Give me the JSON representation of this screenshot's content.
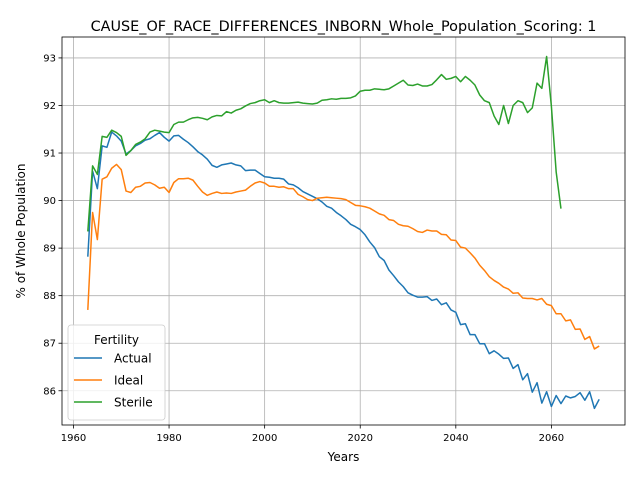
{
  "chart_data": {
    "type": "line",
    "title": "CAUSE_OF_RACE_DIFFERENCES_INBORN_Whole_Population_Scoring: 1",
    "xlabel": "Years",
    "ylabel": "% of Whole Population",
    "xlim": [
      1957.6,
      2075.4
    ],
    "ylim": [
      85.28,
      93.44
    ],
    "xticks": [
      1960,
      1980,
      2000,
      2020,
      2040,
      2060
    ],
    "yticks": [
      86,
      87,
      88,
      89,
      90,
      91,
      92,
      93
    ],
    "grid": true,
    "legend": {
      "title": "Fertility",
      "placement": "lower-left"
    },
    "series": [
      {
        "name": "Actual",
        "color": "#1f77b4",
        "x": [
          1963,
          1964,
          1965,
          1966,
          1967,
          1968,
          1969,
          1970,
          1971,
          1972,
          1973,
          1974,
          1975,
          1976,
          1977,
          1978,
          1979,
          1980,
          1981,
          1982,
          1983,
          1984,
          1985,
          1986,
          1987,
          1988,
          1989,
          1990,
          1991,
          1992,
          1993,
          1994,
          1995,
          1996,
          1997,
          1998,
          1999,
          2000,
          2001,
          2002,
          2003,
          2004,
          2005,
          2006,
          2007,
          2008,
          2009,
          2010,
          2011,
          2012,
          2013,
          2014,
          2015,
          2016,
          2017,
          2018,
          2019,
          2020,
          2021,
          2022,
          2023,
          2024,
          2025,
          2026,
          2027,
          2028,
          2029,
          2030,
          2031,
          2032,
          2033,
          2034,
          2035,
          2036,
          2037,
          2038,
          2039,
          2040,
          2041,
          2042,
          2043,
          2044,
          2045,
          2046,
          2047,
          2048,
          2049,
          2050,
          2051,
          2052,
          2053,
          2054,
          2055,
          2056,
          2057,
          2058,
          2059,
          2060,
          2061,
          2062,
          2063,
          2064,
          2065,
          2066,
          2067,
          2068,
          2069,
          2070
        ],
        "values": [
          88.82,
          90.62,
          90.25,
          91.15,
          91.12,
          91.44,
          91.36,
          91.25,
          90.98,
          91.05,
          91.15,
          91.2,
          91.27,
          91.3,
          91.37,
          91.43,
          91.33,
          91.25,
          91.36,
          91.37,
          91.29,
          91.22,
          91.13,
          91.03,
          90.96,
          90.87,
          90.74,
          90.7,
          90.75,
          90.77,
          90.79,
          90.75,
          90.73,
          90.63,
          90.64,
          90.64,
          90.57,
          90.5,
          90.49,
          90.47,
          90.47,
          90.45,
          90.35,
          90.33,
          90.27,
          90.19,
          90.14,
          90.09,
          90.04,
          89.97,
          89.88,
          89.84,
          89.75,
          89.68,
          89.6,
          89.5,
          89.45,
          89.39,
          89.28,
          89.13,
          89.01,
          88.82,
          88.74,
          88.54,
          88.42,
          88.29,
          88.19,
          88.06,
          88.01,
          87.97,
          87.97,
          87.98,
          87.9,
          87.93,
          87.81,
          87.85,
          87.7,
          87.65,
          87.39,
          87.41,
          87.18,
          87.18,
          86.99,
          86.99,
          86.78,
          86.84,
          86.77,
          86.68,
          86.69,
          86.47,
          86.55,
          86.23,
          86.36,
          85.97,
          86.17,
          85.74,
          85.98,
          85.67,
          85.9,
          85.73,
          85.89,
          85.85,
          85.88,
          85.96,
          85.8,
          85.98,
          85.63,
          85.82
        ]
      },
      {
        "name": "Ideal",
        "color": "#ff7f0e",
        "x": [
          1963,
          1964,
          1965,
          1966,
          1967,
          1968,
          1969,
          1970,
          1971,
          1972,
          1973,
          1974,
          1975,
          1976,
          1977,
          1978,
          1979,
          1980,
          1981,
          1982,
          1983,
          1984,
          1985,
          1986,
          1987,
          1988,
          1989,
          1990,
          1991,
          1992,
          1993,
          1994,
          1995,
          1996,
          1997,
          1998,
          1999,
          2000,
          2001,
          2002,
          2003,
          2004,
          2005,
          2006,
          2007,
          2008,
          2009,
          2010,
          2011,
          2012,
          2013,
          2014,
          2015,
          2016,
          2017,
          2018,
          2019,
          2020,
          2021,
          2022,
          2023,
          2024,
          2025,
          2026,
          2027,
          2028,
          2029,
          2030,
          2031,
          2032,
          2033,
          2034,
          2035,
          2036,
          2037,
          2038,
          2039,
          2040,
          2041,
          2042,
          2043,
          2044,
          2045,
          2046,
          2047,
          2048,
          2049,
          2050,
          2051,
          2052,
          2053,
          2054,
          2055,
          2056,
          2057,
          2058,
          2059,
          2060,
          2061,
          2062,
          2063,
          2064,
          2065,
          2066,
          2067,
          2068,
          2069,
          2070
        ],
        "values": [
          87.7,
          89.75,
          89.18,
          90.45,
          90.5,
          90.68,
          90.76,
          90.65,
          90.2,
          90.17,
          90.28,
          90.3,
          90.37,
          90.38,
          90.33,
          90.26,
          90.28,
          90.17,
          90.38,
          90.46,
          90.46,
          90.47,
          90.43,
          90.3,
          90.18,
          90.11,
          90.15,
          90.18,
          90.15,
          90.16,
          90.15,
          90.18,
          90.2,
          90.22,
          90.3,
          90.37,
          90.4,
          90.37,
          90.3,
          90.3,
          90.28,
          90.29,
          90.25,
          90.25,
          90.13,
          90.08,
          90.02,
          90.0,
          90.05,
          90.06,
          90.07,
          90.06,
          90.05,
          90.04,
          90.02,
          89.96,
          89.9,
          89.89,
          89.87,
          89.84,
          89.78,
          89.72,
          89.69,
          89.6,
          89.58,
          89.5,
          89.47,
          89.46,
          89.41,
          89.35,
          89.33,
          89.38,
          89.36,
          89.36,
          89.29,
          89.28,
          89.17,
          89.16,
          89.02,
          89.0,
          88.9,
          88.79,
          88.64,
          88.53,
          88.4,
          88.32,
          88.26,
          88.18,
          88.14,
          88.05,
          88.06,
          87.95,
          87.94,
          87.94,
          87.91,
          87.94,
          87.82,
          87.79,
          87.62,
          87.62,
          87.47,
          87.49,
          87.29,
          87.3,
          87.08,
          87.14,
          86.88,
          86.94
        ]
      },
      {
        "name": "Sterile",
        "color": "#2ca02c",
        "x": [
          1963,
          1964,
          1965,
          1966,
          1967,
          1968,
          1969,
          1970,
          1971,
          1972,
          1973,
          1974,
          1975,
          1976,
          1977,
          1978,
          1979,
          1980,
          1981,
          1982,
          1983,
          1984,
          1985,
          1986,
          1987,
          1988,
          1989,
          1990,
          1991,
          1992,
          1993,
          1994,
          1995,
          1996,
          1997,
          1998,
          1999,
          2000,
          2001,
          2002,
          2003,
          2004,
          2005,
          2006,
          2007,
          2008,
          2009,
          2010,
          2011,
          2012,
          2013,
          2014,
          2015,
          2016,
          2017,
          2018,
          2019,
          2020,
          2021,
          2022,
          2023,
          2024,
          2025,
          2026,
          2027,
          2028,
          2029,
          2030,
          2031,
          2032,
          2033,
          2034,
          2035,
          2036,
          2037,
          2038,
          2039,
          2040,
          2041,
          2042,
          2043,
          2044,
          2045,
          2046,
          2047,
          2048,
          2049,
          2050,
          2051,
          2052,
          2053,
          2054,
          2055,
          2056,
          2057,
          2058,
          2059,
          2060,
          2061,
          2062
        ],
        "values": [
          89.35,
          90.73,
          90.55,
          91.35,
          91.33,
          91.48,
          91.43,
          91.35,
          90.95,
          91.05,
          91.18,
          91.23,
          91.3,
          91.44,
          91.48,
          91.46,
          91.44,
          91.43,
          91.6,
          91.65,
          91.65,
          91.7,
          91.74,
          91.75,
          91.73,
          91.7,
          91.76,
          91.79,
          91.78,
          91.87,
          91.84,
          91.9,
          91.93,
          91.99,
          92.04,
          92.06,
          92.1,
          92.12,
          92.06,
          92.1,
          92.06,
          92.05,
          92.05,
          92.06,
          92.07,
          92.05,
          92.04,
          92.03,
          92.05,
          92.11,
          92.12,
          92.14,
          92.13,
          92.15,
          92.15,
          92.16,
          92.2,
          92.3,
          92.32,
          92.32,
          92.35,
          92.34,
          92.33,
          92.35,
          92.41,
          92.47,
          92.53,
          92.43,
          92.42,
          92.45,
          92.41,
          92.41,
          92.44,
          92.54,
          92.65,
          92.55,
          92.57,
          92.61,
          92.5,
          92.61,
          92.53,
          92.43,
          92.22,
          92.1,
          92.06,
          91.78,
          91.6,
          92.0,
          91.62,
          92.0,
          92.1,
          92.06,
          91.85,
          91.95,
          92.47,
          92.36,
          93.03,
          91.98,
          90.6,
          89.83
        ]
      }
    ]
  }
}
